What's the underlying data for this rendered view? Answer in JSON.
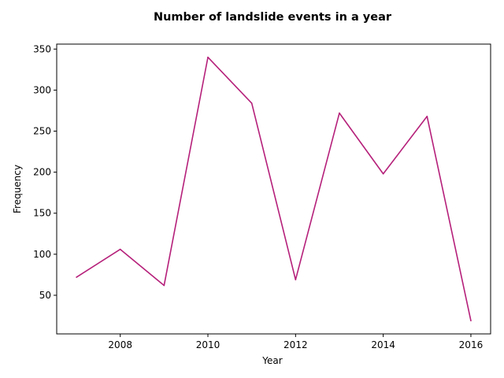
{
  "chart_data": {
    "type": "line",
    "title": "Number of landslide events in a year",
    "xlabel": "Year",
    "ylabel": "Frequency",
    "x": [
      2007,
      2008,
      2009,
      2010,
      2011,
      2012,
      2013,
      2014,
      2015,
      2016
    ],
    "series": [
      {
        "values": [
          72,
          106,
          62,
          340,
          284,
          69,
          272,
          198,
          268,
          19
        ],
        "color": "#b5207a"
      }
    ],
    "xticks": [
      2008,
      2010,
      2012,
      2014,
      2016
    ],
    "yticks": [
      50,
      100,
      150,
      200,
      250,
      300,
      350
    ],
    "xlim": [
      2006.55,
      2016.45
    ],
    "ylim": [
      2.95,
      356.05
    ],
    "grid": false,
    "legend": "none"
  }
}
